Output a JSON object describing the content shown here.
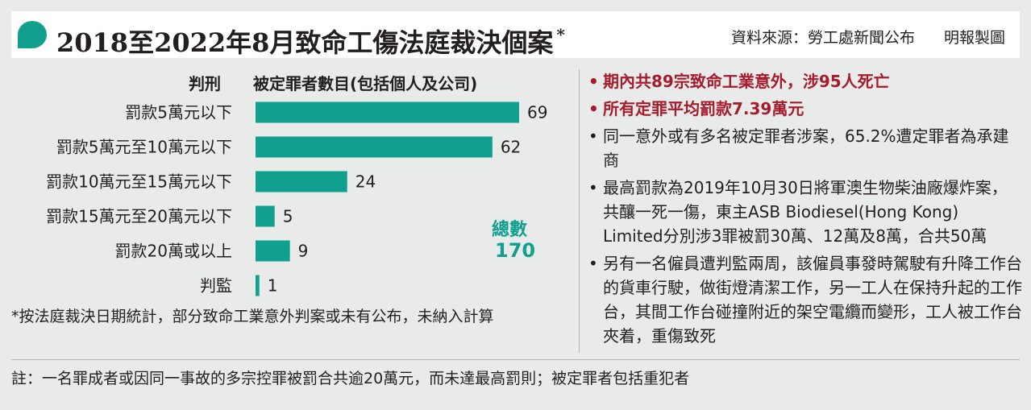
{
  "header": {
    "title": "2018至2022年8月致命工傷法庭裁決個案",
    "title_mark": "*",
    "source": "資料來源：勞工處新聞公布",
    "credit": "明報製圖"
  },
  "chart": {
    "col_category": "判刑",
    "col_value": "被定罪者數目(包括個人及公司)",
    "total_label": "總數",
    "total_value": "170"
  },
  "chart_data": {
    "type": "bar",
    "orientation": "horizontal",
    "categories": [
      "罰款5萬元以下",
      "罰款5萬元至10萬元以下",
      "罰款10萬元至15萬元以下",
      "罰款15萬元至20萬元以下",
      "罰款20萬或以上",
      "判監"
    ],
    "values": [
      69,
      62,
      24,
      5,
      9,
      1
    ],
    "value_labels": [
      "69",
      "62",
      "24",
      "5",
      "9",
      "1"
    ],
    "xlim": [
      0,
      69
    ],
    "bar_color": "#11a08e",
    "grid": false
  },
  "footnote": "*按法庭裁決日期統計，部分致命工業意外判案或未有公布，未納入計算",
  "note": "註：一名罪成者或因同一事故的多宗控罪被罰合共逾20萬元，而未達最高罰則；被定罪者包括重犯者",
  "bullets": [
    {
      "text": "期內共89宗致命工業意外，涉95人死亡",
      "highlight": true
    },
    {
      "text": "所有定罪平均罰款7.39萬元",
      "highlight": true
    },
    {
      "text": "同一意外或有多名被定罪者涉案，65.2%遭定罪者為承建商",
      "highlight": false
    },
    {
      "text": "最高罰款為2019年10月30日將軍澳生物柴油廠爆炸案，共釀一死一傷，東主ASB Biodiesel(Hong Kong) Limited分別涉3罪被罰30萬、12萬及8萬，合共50萬",
      "highlight": false
    },
    {
      "text": "另有一名僱員遭判監兩周，該僱員事發時駕駛有升降工作台的貨車行駛，做街燈清潔工作，另一工人在保持升起的工作台，其間工作台碰撞附近的架空電纜而變形，工人被工作台夾着，重傷致死",
      "highlight": false
    }
  ],
  "colors": {
    "accent": "#11a08e",
    "highlight": "#a51d2d",
    "background": "#e9eaea"
  }
}
